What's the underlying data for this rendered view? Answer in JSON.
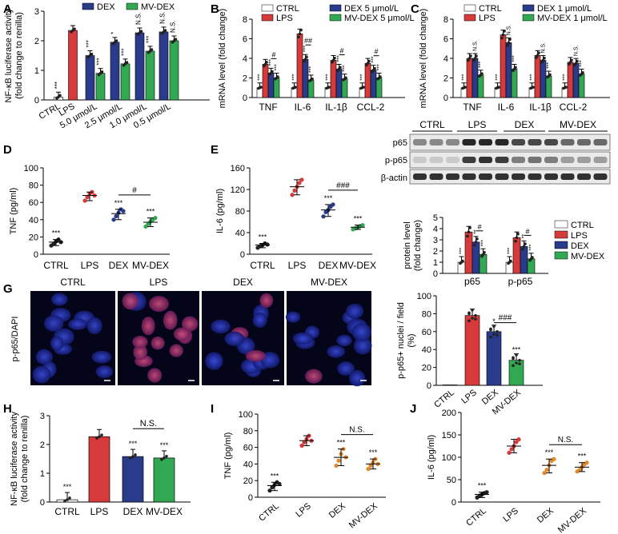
{
  "colors": {
    "ctrl": "#ffffff",
    "lps": "#d63a3a",
    "dex": "#2b3b8c",
    "mvdex": "#33a852",
    "dot_tnf": "#e08a2c",
    "dot_il6": "#e08a2c",
    "dot_ctrl": "#222222",
    "dot_red": "#d63a3a",
    "dot_green": "#33a852",
    "dot_blue": "#2b3b8c"
  },
  "panels": {
    "A": "A",
    "B": "B",
    "C": "C",
    "D": "D",
    "E": "E",
    "F": "F",
    "G": "G",
    "H": "H",
    "I": "I",
    "J": "J"
  },
  "chart_data": [
    {
      "id": "A",
      "type": "bar",
      "ylabel": "NF-κB luciferase activity\n(fold change to renilla)",
      "ylim": [
        0,
        3
      ],
      "yticks": [
        0,
        1,
        2,
        3
      ],
      "legend": [
        "DEX",
        "MV-DEX"
      ],
      "groups": [
        {
          "label": "CTRL",
          "bars": [
            {
              "s": "ctrl",
              "v": 0.1,
              "sig": "***"
            }
          ]
        },
        {
          "label": "LPS",
          "bars": [
            {
              "s": "lps",
              "v": 2.35,
              "sig": ""
            }
          ]
        },
        {
          "label": "5.0 μmol/L",
          "bars": [
            {
              "s": "dex",
              "v": 1.5,
              "sig": "***"
            },
            {
              "s": "mvdex",
              "v": 0.9,
              "sig": "***"
            }
          ]
        },
        {
          "label": "2.5 μmol/L",
          "bars": [
            {
              "s": "dex",
              "v": 1.95,
              "sig": "*"
            },
            {
              "s": "mvdex",
              "v": 1.22,
              "sig": "***"
            }
          ]
        },
        {
          "label": "1.0 μmol/L",
          "bars": [
            {
              "s": "dex",
              "v": 2.27,
              "sig": "N.S."
            },
            {
              "s": "mvdex",
              "v": 1.65,
              "sig": "***"
            }
          ]
        },
        {
          "label": "0.5 μmol/L",
          "bars": [
            {
              "s": "dex",
              "v": 2.3,
              "sig": "N.S."
            },
            {
              "s": "mvdex",
              "v": 2.0,
              "sig": "N.S."
            }
          ]
        }
      ]
    },
    {
      "id": "B",
      "type": "bar",
      "ylabel": "mRNA level (fold change)",
      "ylim": [
        0,
        8
      ],
      "yticks": [
        0,
        2,
        4,
        6,
        8
      ],
      "legend": [
        "CTRL",
        "LPS",
        "DEX 5 μmol/L",
        "MV-DEX 5 μmol/L"
      ],
      "groups": [
        {
          "label": "TNF",
          "vals": [
            1,
            3.4,
            2.5,
            2.0
          ],
          "sigs": [
            "***",
            "",
            "***",
            "***"
          ],
          "cmp": "#"
        },
        {
          "label": "IL-6",
          "vals": [
            1,
            6.5,
            3.9,
            1.8
          ],
          "sigs": [
            "***",
            "",
            "***",
            "***"
          ],
          "cmp": "##"
        },
        {
          "label": "IL-1β",
          "vals": [
            1,
            3.8,
            2.9,
            1.9
          ],
          "sigs": [
            "***",
            "",
            "***",
            "***"
          ],
          "cmp": "#"
        },
        {
          "label": "CCL-2",
          "vals": [
            1,
            3.5,
            2.8,
            2.0
          ],
          "sigs": [
            "***",
            "",
            "***",
            "***"
          ],
          "cmp": "#"
        }
      ]
    },
    {
      "id": "C",
      "type": "bar",
      "ylabel": "mRNA level (fold change)",
      "ylim": [
        0,
        8
      ],
      "yticks": [
        0,
        2,
        4,
        6,
        8
      ],
      "legend": [
        "CTRL",
        "LPS",
        "DEX 1 μmol/L",
        "MV-DEX 1 μmol/L"
      ],
      "groups": [
        {
          "label": "TNF",
          "vals": [
            1,
            4.0,
            4.0,
            2.3
          ],
          "sigs": [
            "***",
            "",
            "N.S.",
            "***"
          ]
        },
        {
          "label": "IL-6",
          "vals": [
            1,
            6.4,
            5.6,
            2.9
          ],
          "sigs": [
            "***",
            "",
            "N.S.",
            "***"
          ]
        },
        {
          "label": "IL-1β",
          "vals": [
            1,
            4.3,
            3.8,
            2.2
          ],
          "sigs": [
            "***",
            "",
            "N.S.",
            "***"
          ]
        },
        {
          "label": "CCL-2",
          "vals": [
            1,
            3.6,
            3.5,
            2.4
          ],
          "sigs": [
            "***",
            "",
            "N.S.",
            "***"
          ]
        }
      ]
    },
    {
      "id": "D",
      "type": "scatter",
      "ylabel": "TNF  (pg/ml)",
      "ylim": [
        0,
        100
      ],
      "yticks": [
        0,
        20,
        40,
        60,
        80,
        100
      ],
      "categories": [
        "CTRL",
        "LPS",
        "DEX",
        "MV-DEX"
      ],
      "means": [
        14,
        68,
        47,
        37
      ],
      "sigs": [
        "***",
        "",
        "***",
        "***"
      ],
      "cmp": "#",
      "points": [
        [
          10,
          12,
          15,
          17,
          14
        ],
        [
          62,
          66,
          70,
          72,
          68
        ],
        [
          40,
          44,
          48,
          52,
          50
        ],
        [
          32,
          35,
          38,
          40,
          42
        ]
      ]
    },
    {
      "id": "E",
      "type": "scatter",
      "ylabel": "IL-6 (pg/ml)",
      "ylim": [
        0,
        160
      ],
      "yticks": [
        0,
        40,
        80,
        120,
        160
      ],
      "categories": [
        "CTRL",
        "LPS",
        "DEX",
        "MV-DEX"
      ],
      "means": [
        17,
        125,
        82,
        50
      ],
      "sigs": [
        "***",
        "",
        "***",
        "***"
      ],
      "cmp": "###",
      "points": [
        [
          12,
          15,
          17,
          20,
          18
        ],
        [
          110,
          118,
          125,
          132,
          138
        ],
        [
          70,
          78,
          82,
          88,
          92
        ],
        [
          46,
          48,
          50,
          52,
          54
        ]
      ]
    },
    {
      "id": "F",
      "type": "bar",
      "ylabel": "protein level\n(fold change)",
      "ylim": [
        0,
        5
      ],
      "yticks": [
        0,
        1,
        2,
        3,
        4,
        5
      ],
      "legend": [
        "CTRL",
        "LPS",
        "DEX",
        "MV-DEX"
      ],
      "blot_groups": [
        "CTRL",
        "LPS",
        "DEX",
        "MV-DEX"
      ],
      "blot_rows": [
        "p65",
        "p-p65",
        "β-actin"
      ],
      "groups": [
        {
          "label": "p65",
          "vals": [
            1,
            3.7,
            2.8,
            1.7
          ],
          "sigs": [
            "***",
            "",
            "**",
            "***"
          ],
          "cmp": "#"
        },
        {
          "label": "p-p65",
          "vals": [
            1,
            3.2,
            2.4,
            1.3
          ],
          "sigs": [
            "***",
            "",
            "**",
            "***"
          ],
          "cmp": "#"
        }
      ]
    },
    {
      "id": "G",
      "type": "bar",
      "ylabel": "p-p65+ nuclei / field\n(%)",
      "ylim": [
        0,
        100
      ],
      "yticks": [
        0,
        20,
        40,
        60,
        80,
        100
      ],
      "image_label": "p-p65/DAPI",
      "image_titles": [
        "CTRL",
        "LPS",
        "DEX",
        "MV-DEX"
      ],
      "categories": [
        "CTRL",
        "LPS",
        "DEX",
        "MV-DEX"
      ],
      "values": [
        0.5,
        78,
        60,
        28
      ],
      "sigs": [
        "",
        "",
        "*",
        "***"
      ],
      "cmp": "###"
    },
    {
      "id": "H",
      "type": "bar",
      "ylabel": "NF-κB luciferase activity\n(fold change to renilla)",
      "ylim": [
        0,
        3
      ],
      "yticks": [
        0,
        1,
        2,
        3
      ],
      "categories": [
        "CTRL",
        "LPS",
        "DEX",
        "MV-DEX"
      ],
      "values": [
        0.08,
        2.27,
        1.58,
        1.53
      ],
      "sigs": [
        "***",
        "",
        "***",
        "***"
      ],
      "cmp": "N.S."
    },
    {
      "id": "I",
      "type": "scatter",
      "ylabel": "TNF  (pg/ml)",
      "ylim": [
        0,
        100
      ],
      "yticks": [
        0,
        20,
        40,
        60,
        80,
        100
      ],
      "categories": [
        "CTRL",
        "LPS",
        "DEX",
        "MV-DEX"
      ],
      "means": [
        14,
        68,
        48,
        40
      ],
      "sigs": [
        "***",
        "",
        "***",
        "***"
      ],
      "cmp": "N.S.",
      "points": [
        [
          8,
          12,
          15,
          18,
          16
        ],
        [
          62,
          66,
          70,
          74,
          68
        ],
        [
          38,
          44,
          52,
          58,
          48
        ],
        [
          34,
          38,
          42,
          46,
          40
        ]
      ]
    },
    {
      "id": "J",
      "type": "scatter",
      "ylabel": "IL-6 (pg/ml)",
      "ylim": [
        0,
        200
      ],
      "yticks": [
        0,
        50,
        100,
        150,
        200
      ],
      "categories": [
        "CTRL",
        "LPS",
        "DEX",
        "MV-DEX"
      ],
      "means": [
        17,
        125,
        82,
        78
      ],
      "sigs": [
        "***",
        "",
        "***",
        "***"
      ],
      "cmp": "N.S.",
      "points": [
        [
          10,
          14,
          17,
          20,
          22
        ],
        [
          110,
          118,
          125,
          134,
          140
        ],
        [
          65,
          72,
          82,
          92,
          96
        ],
        [
          68,
          72,
          78,
          84,
          88
        ]
      ]
    }
  ]
}
